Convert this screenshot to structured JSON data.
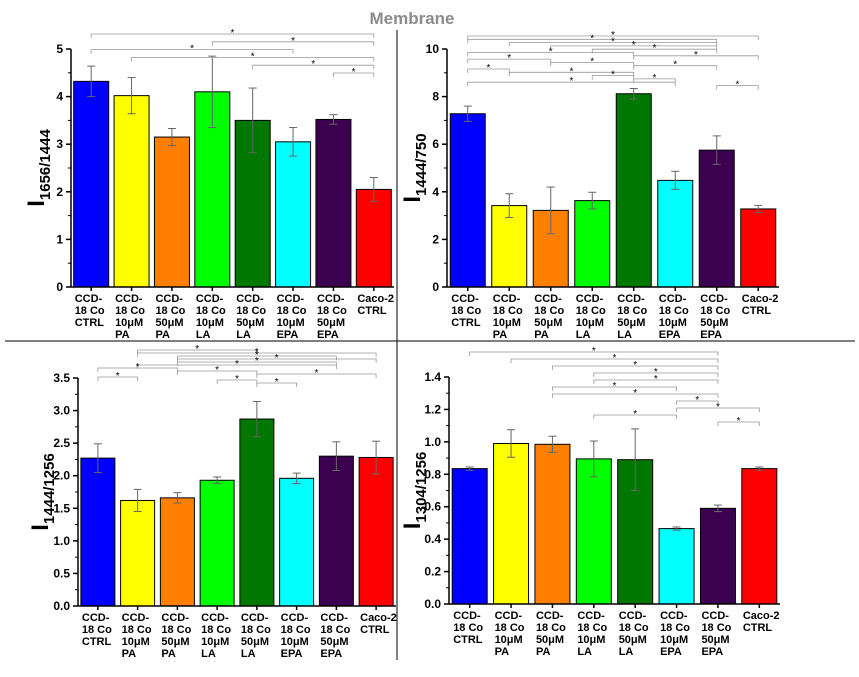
{
  "figure_title": "Membrane",
  "colors": [
    "#0000ff",
    "#ffff00",
    "#ff8000",
    "#00ff00",
    "#007800",
    "#00ffff",
    "#3c0050",
    "#ff0000"
  ],
  "chart_data": [
    {
      "type": "bar",
      "ylabel_main": "I",
      "ylabel_sub": "1656/1444",
      "ylim": [
        0,
        5
      ],
      "yticks": [
        "0",
        "1",
        "2",
        "3",
        "4",
        "5"
      ],
      "categories": [
        [
          "CCD-",
          "18 Co",
          "CTRL"
        ],
        [
          "CCD-",
          "18 Co",
          "10μM",
          "PA"
        ],
        [
          "CCD-",
          "18 Co",
          "50μM",
          "PA"
        ],
        [
          "CCD-",
          "18 Co",
          "10μM",
          "LA"
        ],
        [
          "CCD-",
          "18 Co",
          "50μM",
          "LA"
        ],
        [
          "CCD-",
          "18 Co",
          "10μM",
          "EPA"
        ],
        [
          "CCD-",
          "18 Co",
          "50μM",
          "EPA"
        ],
        [
          "Caco-2",
          "CTRL"
        ]
      ],
      "values": [
        4.32,
        4.02,
        3.15,
        4.1,
        3.5,
        3.05,
        3.52,
        2.05
      ],
      "errors": [
        0.32,
        0.38,
        0.18,
        0.75,
        0.68,
        0.3,
        0.1,
        0.25
      ],
      "significance": [
        {
          "from": 0,
          "to": 7,
          "label": "*"
        },
        {
          "from": 3,
          "to": 7,
          "label": "*"
        },
        {
          "from": 0,
          "to": 5,
          "label": "*"
        },
        {
          "from": 1,
          "to": 7,
          "label": "*"
        },
        {
          "from": 4,
          "to": 7,
          "label": "*"
        },
        {
          "from": 6,
          "to": 7,
          "label": "*"
        }
      ]
    },
    {
      "type": "bar",
      "ylabel_main": "I",
      "ylabel_sub": "1444/750",
      "ylim": [
        0,
        10
      ],
      "yticks": [
        "0",
        "2",
        "4",
        "6",
        "8",
        "10"
      ],
      "categories": [
        [
          "CCD-",
          "18 Co",
          "CTRL"
        ],
        [
          "CCD-",
          "18 Co",
          "10μM",
          "PA"
        ],
        [
          "CCD-",
          "18 Co",
          "50μM",
          "PA"
        ],
        [
          "CCD-",
          "18 Co",
          "10μM",
          "LA"
        ],
        [
          "CCD-",
          "18 Co",
          "50μM",
          "LA"
        ],
        [
          "CCD-",
          "18 Co",
          "10μM",
          "EPA"
        ],
        [
          "CCD-",
          "18 Co",
          "50μM",
          "EPA"
        ],
        [
          "Caco-2",
          "CTRL"
        ]
      ],
      "values": [
        7.28,
        3.42,
        3.22,
        3.63,
        8.12,
        4.48,
        5.75,
        3.28
      ],
      "errors": [
        0.32,
        0.5,
        0.98,
        0.35,
        0.22,
        0.38,
        0.6,
        0.15
      ],
      "significance": [
        {
          "from": 0,
          "to": 7,
          "label": "*"
        },
        {
          "from": 0,
          "to": 6,
          "label": "*"
        },
        {
          "from": 1,
          "to": 6,
          "label": "*"
        },
        {
          "from": 2,
          "to": 6,
          "label": "*"
        },
        {
          "from": 3,
          "to": 6,
          "label": "*"
        },
        {
          "from": 0,
          "to": 4,
          "label": "*"
        },
        {
          "from": 4,
          "to": 7,
          "label": "*"
        },
        {
          "from": 0,
          "to": 2,
          "label": "*"
        },
        {
          "from": 2,
          "to": 4,
          "label": "*"
        },
        {
          "from": 4,
          "to": 6,
          "label": "*"
        },
        {
          "from": 0,
          "to": 1,
          "label": "*"
        },
        {
          "from": 1,
          "to": 4,
          "label": "*"
        },
        {
          "from": 3,
          "to": 4,
          "label": "*"
        },
        {
          "from": 4,
          "to": 5,
          "label": "*"
        },
        {
          "from": 0,
          "to": 5,
          "label": "*"
        },
        {
          "from": 6,
          "to": 7,
          "label": "*"
        }
      ]
    },
    {
      "type": "bar",
      "ylabel_main": "I",
      "ylabel_sub": "1444/1256",
      "ylim": [
        0,
        3.5
      ],
      "yticks": [
        "0.0",
        "0.5",
        "1.0",
        "1.5",
        "2.0",
        "2.5",
        "3.0",
        "3.5"
      ],
      "categories": [
        [
          "CCD-",
          "18 Co",
          "CTRL"
        ],
        [
          "CCD-",
          "18 Co",
          "10μM",
          "PA"
        ],
        [
          "CCD-",
          "18 Co",
          "50μM",
          "PA"
        ],
        [
          "CCD-",
          "18 Co",
          "10μM",
          "LA"
        ],
        [
          "CCD-",
          "18 Co",
          "50μM",
          "LA"
        ],
        [
          "CCD-",
          "18 Co",
          "10μM",
          "EPA"
        ],
        [
          "CCD-",
          "18 Co",
          "50μM",
          "EPA"
        ],
        [
          "Caco-2",
          "CTRL"
        ]
      ],
      "values": [
        2.27,
        1.62,
        1.66,
        1.93,
        2.87,
        1.96,
        2.3,
        2.28
      ],
      "errors": [
        0.22,
        0.17,
        0.08,
        0.05,
        0.27,
        0.08,
        0.22,
        0.25
      ],
      "significance": [
        {
          "from": 1,
          "to": 4,
          "label": "*"
        },
        {
          "from": 1,
          "to": 7,
          "label": "*"
        },
        {
          "from": 2,
          "to": 6,
          "label": "*"
        },
        {
          "from": 2,
          "to": 7,
          "label": "*"
        },
        {
          "from": 2,
          "to": 6,
          "label": "*"
        },
        {
          "from": 1,
          "to": 6,
          "label": "*"
        },
        {
          "from": 0,
          "to": 2,
          "label": "*"
        },
        {
          "from": 2,
          "to": 4,
          "label": "*"
        },
        {
          "from": 4,
          "to": 7,
          "label": "*"
        },
        {
          "from": 0,
          "to": 1,
          "label": "*"
        },
        {
          "from": 3,
          "to": 4,
          "label": "*"
        },
        {
          "from": 4,
          "to": 5,
          "label": "*"
        }
      ]
    },
    {
      "type": "bar",
      "ylabel_main": "I",
      "ylabel_sub": "1304/1256",
      "ylim": [
        0,
        1.4
      ],
      "yticks": [
        "0.0",
        "0.2",
        "0.4",
        "0.6",
        "0.8",
        "1.0",
        "1.2",
        "1.4"
      ],
      "categories": [
        [
          "CCD-",
          "18 Co",
          "CTRL"
        ],
        [
          "CCD-",
          "18 Co",
          "10μM",
          "PA"
        ],
        [
          "CCD-",
          "18 Co",
          "50μM",
          "PA"
        ],
        [
          "CCD-",
          "18 Co",
          "10μM",
          "LA"
        ],
        [
          "CCD-",
          "18 Co",
          "50μM",
          "LA"
        ],
        [
          "CCD-",
          "18 Co",
          "10μM",
          "EPA"
        ],
        [
          "CCD-",
          "18 Co",
          "50μM",
          "EPA"
        ],
        [
          "Caco-2",
          "CTRL"
        ]
      ],
      "values": [
        0.835,
        0.99,
        0.985,
        0.895,
        0.89,
        0.465,
        0.59,
        0.835
      ],
      "errors": [
        0.01,
        0.085,
        0.05,
        0.11,
        0.19,
        0.01,
        0.02,
        0.01
      ],
      "significance": [
        {
          "from": 0,
          "to": 6,
          "label": "*"
        },
        {
          "from": 1,
          "to": 6,
          "label": "*"
        },
        {
          "from": 2,
          "to": 6,
          "label": "*"
        },
        {
          "from": 3,
          "to": 6,
          "label": "*"
        },
        {
          "from": 3,
          "to": 6,
          "label": "*"
        },
        {
          "from": 2,
          "to": 5,
          "label": "*"
        },
        {
          "from": 2,
          "to": 6,
          "label": "*"
        },
        {
          "from": 5,
          "to": 6,
          "label": "*"
        },
        {
          "from": 5,
          "to": 7,
          "label": "*"
        },
        {
          "from": 3,
          "to": 5,
          "label": "*"
        },
        {
          "from": 6,
          "to": 7,
          "label": "*"
        }
      ]
    }
  ]
}
